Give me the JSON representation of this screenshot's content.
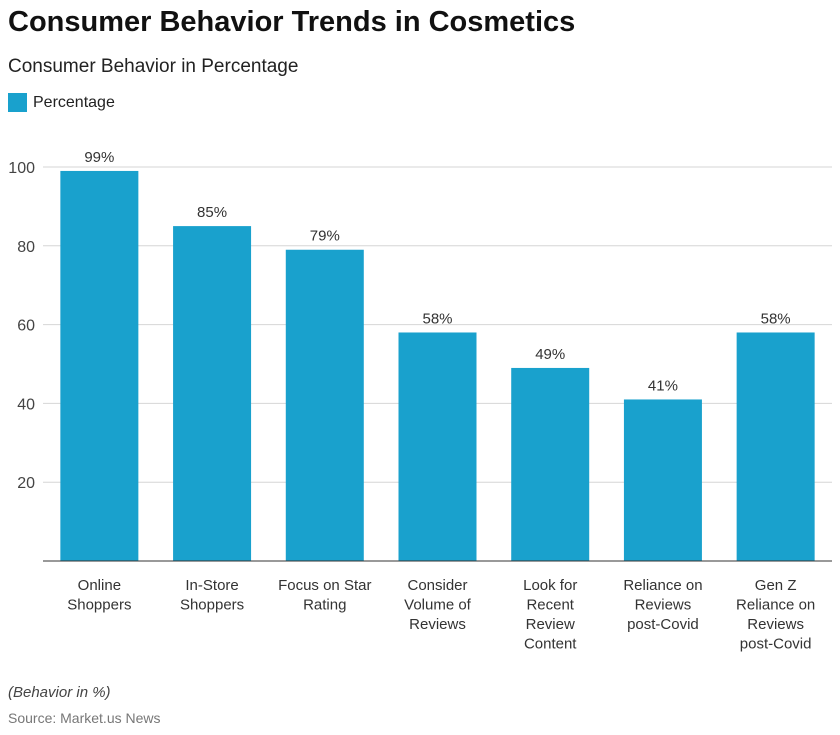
{
  "title": "Consumer Behavior Trends in Cosmetics",
  "subtitle": "Consumer Behavior in Percentage",
  "note": "(Behavior in %)",
  "source": "Source: Market.us News",
  "chart_data": {
    "type": "bar",
    "legend": "Percentage",
    "legend_placement": "top-left",
    "color": "#19a1cd",
    "grid": true,
    "ylim": [
      0,
      100
    ],
    "yticks": [
      20,
      40,
      60,
      80,
      100
    ],
    "categories": [
      [
        "Online",
        "Shoppers"
      ],
      [
        "In-Store",
        "Shoppers"
      ],
      [
        "Focus on Star",
        "Rating"
      ],
      [
        "Consider",
        "Volume of",
        "Reviews"
      ],
      [
        "Look for",
        "Recent",
        "Review",
        "Content"
      ],
      [
        "Reliance on",
        "Reviews",
        "post-Covid"
      ],
      [
        "Gen Z",
        "Reliance on",
        "Reviews",
        "post-Covid"
      ]
    ],
    "values": [
      99,
      85,
      79,
      58,
      49,
      41,
      58
    ],
    "data_labels": [
      "99%",
      "85%",
      "79%",
      "58%",
      "49%",
      "41%",
      "58%"
    ]
  }
}
